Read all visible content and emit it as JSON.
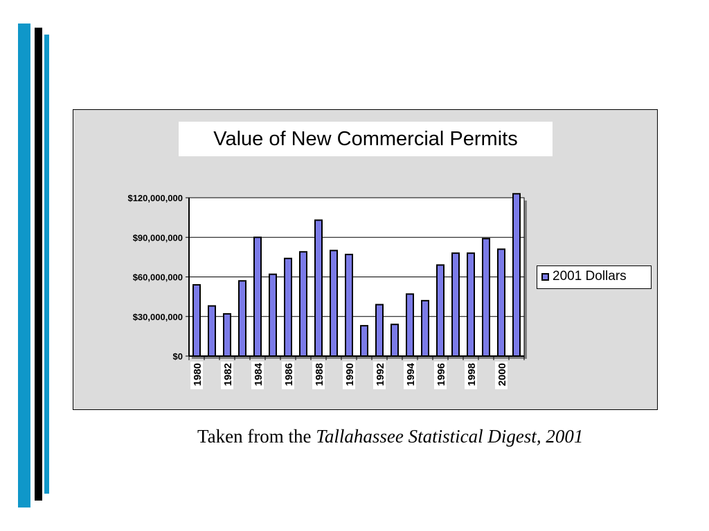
{
  "theme": {
    "accent_blue": "#0f97c9",
    "plot_background": "#ffffff",
    "chart_background": "#dcdcdc",
    "bar_fill": "#7b7be8",
    "bar_outline": "#000000"
  },
  "caption": {
    "prefix": "Taken from the ",
    "source": "Tallahassee Statistical Digest, 2001"
  },
  "chart_data": {
    "type": "bar",
    "title": "Value of New Commercial Permits",
    "xlabel": "",
    "ylabel": "",
    "categories": [
      "1980",
      "1981",
      "1982",
      "1983",
      "1984",
      "1985",
      "1986",
      "1987",
      "1988",
      "1989",
      "1990",
      "1991",
      "1992",
      "1993",
      "1994",
      "1995",
      "1996",
      "1997",
      "1998",
      "1999",
      "2000",
      "2001"
    ],
    "x_tick_labels": [
      "1980",
      "1982",
      "1984",
      "1986",
      "1988",
      "1990",
      "1992",
      "1994",
      "1996",
      "1998",
      "2000"
    ],
    "series": [
      {
        "name": "2001 Dollars",
        "values": [
          54000000,
          38000000,
          32000000,
          57000000,
          90000000,
          62000000,
          74000000,
          79000000,
          103000000,
          80000000,
          77000000,
          23000000,
          39000000,
          24000000,
          47000000,
          42000000,
          69000000,
          78000000,
          78000000,
          89000000,
          81000000,
          123000000
        ]
      }
    ],
    "ylim": [
      0,
      120000000
    ],
    "y_ticks": [
      0,
      30000000,
      60000000,
      90000000,
      120000000
    ],
    "y_tick_labels": [
      "$0",
      "$30,000,000",
      "$60,000,000",
      "$90,000,000",
      "$120,000,000"
    ],
    "grid": true,
    "legend_position": "right"
  }
}
